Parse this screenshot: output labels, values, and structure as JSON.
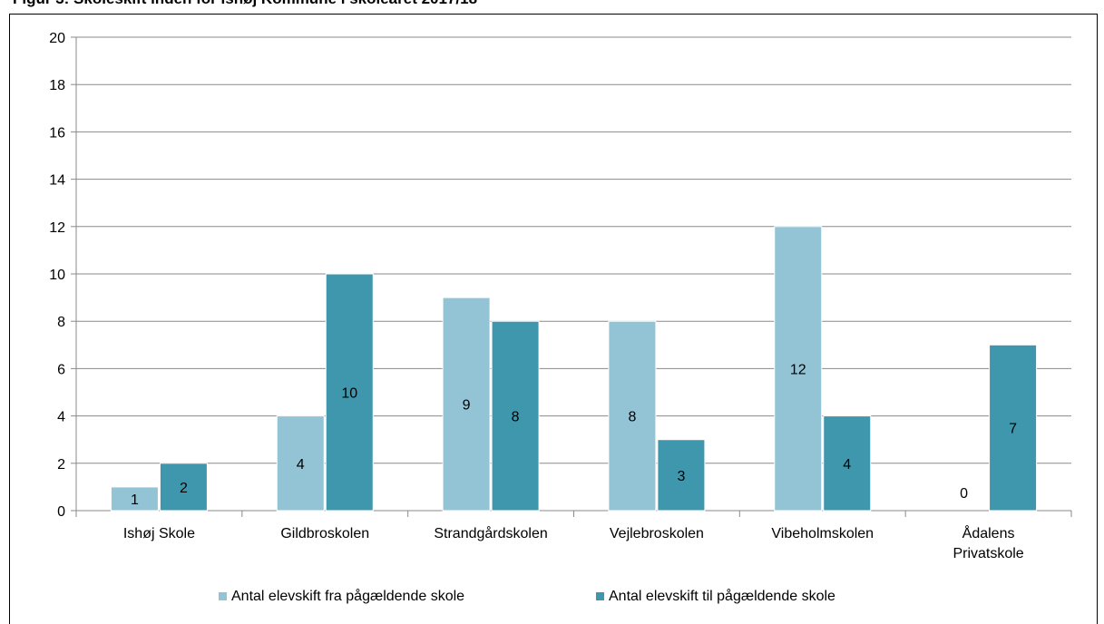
{
  "figure_title": "Figur 3: Skoleskift inden for Ishøj Kommune i skoleåret 2017/18",
  "chart_data": {
    "type": "bar",
    "title": "",
    "xlabel": "",
    "ylabel": "",
    "ylim": [
      0,
      20
    ],
    "yticks": [
      0,
      2,
      4,
      6,
      8,
      10,
      12,
      14,
      16,
      18,
      20
    ],
    "grid": true,
    "legend_position": "bottom",
    "categories": [
      [
        "Ishøj Skole"
      ],
      [
        "Gildbroskolen"
      ],
      [
        "Strandgårdskolen"
      ],
      [
        "Vejlebroskolen"
      ],
      [
        "Vibeholmskolen"
      ],
      [
        "Ådalens",
        "Privatskole"
      ]
    ],
    "series": [
      {
        "name": "Antal elevskift fra pågældende skole",
        "color": "#93c4d6",
        "values": [
          1,
          4,
          9,
          8,
          12,
          0
        ]
      },
      {
        "name": "Antal elevskift til pågældende skole",
        "color": "#3f97ae",
        "values": [
          2,
          10,
          8,
          3,
          4,
          7
        ]
      }
    ]
  }
}
